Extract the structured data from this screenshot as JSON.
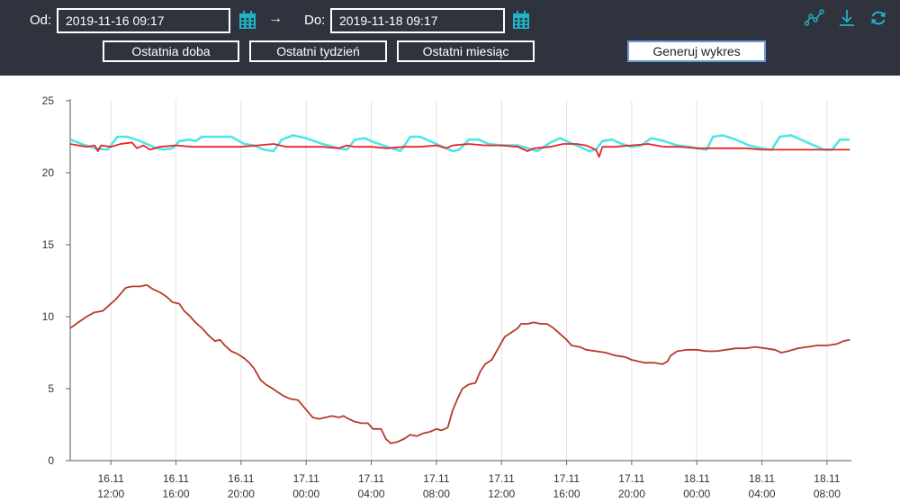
{
  "toolbar": {
    "from_label": "Od:",
    "from_value": "2019-11-16 09:17",
    "arrow": "→",
    "to_label": "Do:",
    "to_value": "2019-11-18 09:17",
    "buttons": {
      "last_day": "Ostatnia doba",
      "last_week": "Ostatni tydzień",
      "last_month": "Ostatni miesiąc",
      "generate": "Generuj wykres"
    },
    "icons": [
      "calendar-icon",
      "line-chart-icon",
      "download-icon",
      "refresh-icon"
    ],
    "accent_color": "#1fb5c7",
    "background_color": "#2e333d"
  },
  "chart_data": {
    "type": "line",
    "title": "",
    "xlabel": "",
    "ylabel": "",
    "ylim": [
      0,
      25
    ],
    "yticks": [
      0,
      5,
      10,
      15,
      20,
      25
    ],
    "grid": "vertical",
    "xlim": [
      9.5,
      57.5
    ],
    "xticks": [
      {
        "hour": 12,
        "line1": "16.11",
        "line2": "12:00"
      },
      {
        "hour": 16,
        "line1": "16.11",
        "line2": "16:00"
      },
      {
        "hour": 20,
        "line1": "16.11",
        "line2": "20:00"
      },
      {
        "hour": 24,
        "line1": "17.11",
        "line2": "00:00"
      },
      {
        "hour": 28,
        "line1": "17.11",
        "line2": "04:00"
      },
      {
        "hour": 32,
        "line1": "17.11",
        "line2": "08:00"
      },
      {
        "hour": 36,
        "line1": "17.11",
        "line2": "12:00"
      },
      {
        "hour": 40,
        "line1": "17.11",
        "line2": "16:00"
      },
      {
        "hour": 44,
        "line1": "17.11",
        "line2": "20:00"
      },
      {
        "hour": 48,
        "line1": "18.11",
        "line2": "00:00"
      },
      {
        "hour": 52,
        "line1": "18.11",
        "line2": "04:00"
      },
      {
        "hour": 56,
        "line1": "18.11",
        "line2": "08:00"
      }
    ],
    "series": [
      {
        "color": "#4fe6e6",
        "points": [
          [
            9.5,
            22.3
          ],
          [
            10.2,
            22.0
          ],
          [
            11.0,
            21.7
          ],
          [
            11.8,
            21.6
          ],
          [
            12.4,
            22.5
          ],
          [
            13.0,
            22.5
          ],
          [
            13.8,
            22.2
          ],
          [
            14.6,
            21.8
          ],
          [
            15.2,
            21.6
          ],
          [
            15.8,
            21.7
          ],
          [
            16.2,
            22.2
          ],
          [
            16.8,
            22.3
          ],
          [
            17.2,
            22.2
          ],
          [
            17.6,
            22.5
          ],
          [
            18.4,
            22.5
          ],
          [
            19.4,
            22.5
          ],
          [
            20.2,
            22.0
          ],
          [
            20.8,
            21.9
          ],
          [
            21.4,
            21.6
          ],
          [
            22.0,
            21.5
          ],
          [
            22.5,
            22.3
          ],
          [
            23.2,
            22.6
          ],
          [
            24.0,
            22.4
          ],
          [
            25.0,
            22.0
          ],
          [
            26.0,
            21.7
          ],
          [
            26.5,
            21.6
          ],
          [
            27.0,
            22.3
          ],
          [
            27.6,
            22.4
          ],
          [
            28.2,
            22.1
          ],
          [
            29.0,
            21.8
          ],
          [
            29.8,
            21.5
          ],
          [
            30.4,
            22.5
          ],
          [
            31.0,
            22.5
          ],
          [
            31.8,
            22.1
          ],
          [
            32.4,
            21.8
          ],
          [
            33.0,
            21.5
          ],
          [
            33.4,
            21.6
          ],
          [
            34.0,
            22.3
          ],
          [
            34.6,
            22.3
          ],
          [
            35.2,
            22.0
          ],
          [
            36.0,
            21.9
          ],
          [
            37.0,
            21.9
          ],
          [
            37.6,
            21.7
          ],
          [
            38.2,
            21.5
          ],
          [
            39.0,
            22.1
          ],
          [
            39.6,
            22.4
          ],
          [
            40.2,
            22.1
          ],
          [
            40.8,
            21.8
          ],
          [
            41.4,
            21.5
          ],
          [
            41.8,
            21.6
          ],
          [
            42.2,
            22.2
          ],
          [
            42.8,
            22.3
          ],
          [
            43.4,
            22.0
          ],
          [
            44.0,
            21.8
          ],
          [
            44.6,
            21.9
          ],
          [
            45.2,
            22.4
          ],
          [
            46.0,
            22.2
          ],
          [
            46.8,
            21.9
          ],
          [
            47.6,
            21.8
          ],
          [
            48.0,
            21.7
          ],
          [
            48.6,
            21.6
          ],
          [
            49.0,
            22.5
          ],
          [
            49.6,
            22.6
          ],
          [
            50.4,
            22.3
          ],
          [
            51.2,
            21.9
          ],
          [
            52.0,
            21.7
          ],
          [
            52.6,
            21.6
          ],
          [
            53.1,
            22.5
          ],
          [
            53.8,
            22.6
          ],
          [
            54.6,
            22.2
          ],
          [
            55.2,
            21.9
          ],
          [
            55.8,
            21.6
          ],
          [
            56.3,
            21.6
          ],
          [
            56.8,
            22.3
          ],
          [
            57.4,
            22.3
          ]
        ]
      },
      {
        "color": "#e8232a",
        "points": [
          [
            9.5,
            22.0
          ],
          [
            10.5,
            21.8
          ],
          [
            11.0,
            21.9
          ],
          [
            11.2,
            21.5
          ],
          [
            11.4,
            21.9
          ],
          [
            12.0,
            21.8
          ],
          [
            12.6,
            22.0
          ],
          [
            13.3,
            22.1
          ],
          [
            13.6,
            21.7
          ],
          [
            14.0,
            21.9
          ],
          [
            14.4,
            21.6
          ],
          [
            15.0,
            21.8
          ],
          [
            16.0,
            21.9
          ],
          [
            17.0,
            21.8
          ],
          [
            18.0,
            21.8
          ],
          [
            19.0,
            21.8
          ],
          [
            20.0,
            21.8
          ],
          [
            21.0,
            21.9
          ],
          [
            22.0,
            22.0
          ],
          [
            22.8,
            21.8
          ],
          [
            24.0,
            21.8
          ],
          [
            25.0,
            21.8
          ],
          [
            26.0,
            21.7
          ],
          [
            26.5,
            21.9
          ],
          [
            27.0,
            21.8
          ],
          [
            28.0,
            21.8
          ],
          [
            29.0,
            21.7
          ],
          [
            30.0,
            21.8
          ],
          [
            31.0,
            21.8
          ],
          [
            32.0,
            21.9
          ],
          [
            32.6,
            21.7
          ],
          [
            33.0,
            21.9
          ],
          [
            34.0,
            22.0
          ],
          [
            35.0,
            21.9
          ],
          [
            36.0,
            21.9
          ],
          [
            37.0,
            21.8
          ],
          [
            37.6,
            21.5
          ],
          [
            38.0,
            21.7
          ],
          [
            39.0,
            21.8
          ],
          [
            39.8,
            22.0
          ],
          [
            40.6,
            22.0
          ],
          [
            41.2,
            21.9
          ],
          [
            41.8,
            21.6
          ],
          [
            42.0,
            21.1
          ],
          [
            42.2,
            21.8
          ],
          [
            43.0,
            21.8
          ],
          [
            44.0,
            21.9
          ],
          [
            45.0,
            22.0
          ],
          [
            46.0,
            21.8
          ],
          [
            47.0,
            21.8
          ],
          [
            48.0,
            21.7
          ],
          [
            49.0,
            21.7
          ],
          [
            50.0,
            21.7
          ],
          [
            51.0,
            21.7
          ],
          [
            52.0,
            21.6
          ],
          [
            53.0,
            21.6
          ],
          [
            54.0,
            21.6
          ],
          [
            55.0,
            21.6
          ],
          [
            56.0,
            21.6
          ],
          [
            57.4,
            21.6
          ]
        ]
      },
      {
        "color": "#b73a2a",
        "points": [
          [
            9.5,
            9.2
          ],
          [
            10.0,
            9.6
          ],
          [
            10.5,
            10.0
          ],
          [
            11.0,
            10.3
          ],
          [
            11.5,
            10.4
          ],
          [
            12.0,
            10.9
          ],
          [
            12.3,
            11.2
          ],
          [
            12.6,
            11.6
          ],
          [
            12.9,
            12.0
          ],
          [
            13.3,
            12.1
          ],
          [
            13.8,
            12.1
          ],
          [
            14.2,
            12.2
          ],
          [
            14.6,
            11.9
          ],
          [
            15.0,
            11.7
          ],
          [
            15.4,
            11.4
          ],
          [
            15.8,
            11.0
          ],
          [
            16.2,
            10.9
          ],
          [
            16.5,
            10.4
          ],
          [
            16.8,
            10.1
          ],
          [
            17.2,
            9.6
          ],
          [
            17.6,
            9.2
          ],
          [
            18.0,
            8.7
          ],
          [
            18.4,
            8.3
          ],
          [
            18.7,
            8.4
          ],
          [
            19.0,
            8.0
          ],
          [
            19.4,
            7.6
          ],
          [
            19.8,
            7.4
          ],
          [
            20.2,
            7.1
          ],
          [
            20.5,
            6.8
          ],
          [
            20.8,
            6.4
          ],
          [
            21.0,
            6.0
          ],
          [
            21.2,
            5.6
          ],
          [
            21.5,
            5.3
          ],
          [
            21.8,
            5.1
          ],
          [
            22.2,
            4.8
          ],
          [
            22.6,
            4.5
          ],
          [
            23.0,
            4.3
          ],
          [
            23.5,
            4.2
          ],
          [
            23.8,
            3.8
          ],
          [
            24.1,
            3.4
          ],
          [
            24.4,
            3.0
          ],
          [
            24.8,
            2.9
          ],
          [
            25.2,
            3.0
          ],
          [
            25.6,
            3.1
          ],
          [
            26.0,
            3.0
          ],
          [
            26.3,
            3.1
          ],
          [
            26.6,
            2.9
          ],
          [
            27.0,
            2.7
          ],
          [
            27.4,
            2.6
          ],
          [
            27.8,
            2.6
          ],
          [
            28.1,
            2.2
          ],
          [
            28.6,
            2.2
          ],
          [
            28.9,
            1.5
          ],
          [
            29.2,
            1.2
          ],
          [
            29.6,
            1.3
          ],
          [
            30.0,
            1.5
          ],
          [
            30.4,
            1.8
          ],
          [
            30.8,
            1.7
          ],
          [
            31.2,
            1.9
          ],
          [
            31.6,
            2.0
          ],
          [
            32.0,
            2.2
          ],
          [
            32.3,
            2.1
          ],
          [
            32.7,
            2.3
          ],
          [
            33.0,
            3.5
          ],
          [
            33.3,
            4.3
          ],
          [
            33.6,
            5.0
          ],
          [
            34.0,
            5.3
          ],
          [
            34.4,
            5.4
          ],
          [
            34.7,
            6.2
          ],
          [
            35.0,
            6.7
          ],
          [
            35.4,
            7.0
          ],
          [
            35.8,
            7.8
          ],
          [
            36.2,
            8.6
          ],
          [
            36.6,
            8.9
          ],
          [
            37.0,
            9.2
          ],
          [
            37.2,
            9.5
          ],
          [
            37.6,
            9.5
          ],
          [
            38.0,
            9.6
          ],
          [
            38.4,
            9.5
          ],
          [
            38.8,
            9.5
          ],
          [
            39.2,
            9.2
          ],
          [
            39.6,
            8.8
          ],
          [
            40.0,
            8.4
          ],
          [
            40.3,
            8.0
          ],
          [
            40.8,
            7.9
          ],
          [
            41.2,
            7.7
          ],
          [
            41.8,
            7.6
          ],
          [
            42.4,
            7.5
          ],
          [
            43.0,
            7.3
          ],
          [
            43.6,
            7.2
          ],
          [
            44.0,
            7.0
          ],
          [
            44.4,
            6.9
          ],
          [
            44.8,
            6.8
          ],
          [
            45.4,
            6.8
          ],
          [
            45.9,
            6.7
          ],
          [
            46.2,
            6.9
          ],
          [
            46.4,
            7.3
          ],
          [
            46.8,
            7.6
          ],
          [
            47.4,
            7.7
          ],
          [
            48.0,
            7.7
          ],
          [
            48.6,
            7.6
          ],
          [
            49.2,
            7.6
          ],
          [
            49.8,
            7.7
          ],
          [
            50.4,
            7.8
          ],
          [
            51.0,
            7.8
          ],
          [
            51.6,
            7.9
          ],
          [
            52.2,
            7.8
          ],
          [
            52.8,
            7.7
          ],
          [
            53.2,
            7.5
          ],
          [
            53.6,
            7.6
          ],
          [
            54.2,
            7.8
          ],
          [
            54.8,
            7.9
          ],
          [
            55.4,
            8.0
          ],
          [
            56.0,
            8.0
          ],
          [
            56.6,
            8.1
          ],
          [
            57.0,
            8.3
          ],
          [
            57.4,
            8.4
          ]
        ]
      }
    ]
  }
}
